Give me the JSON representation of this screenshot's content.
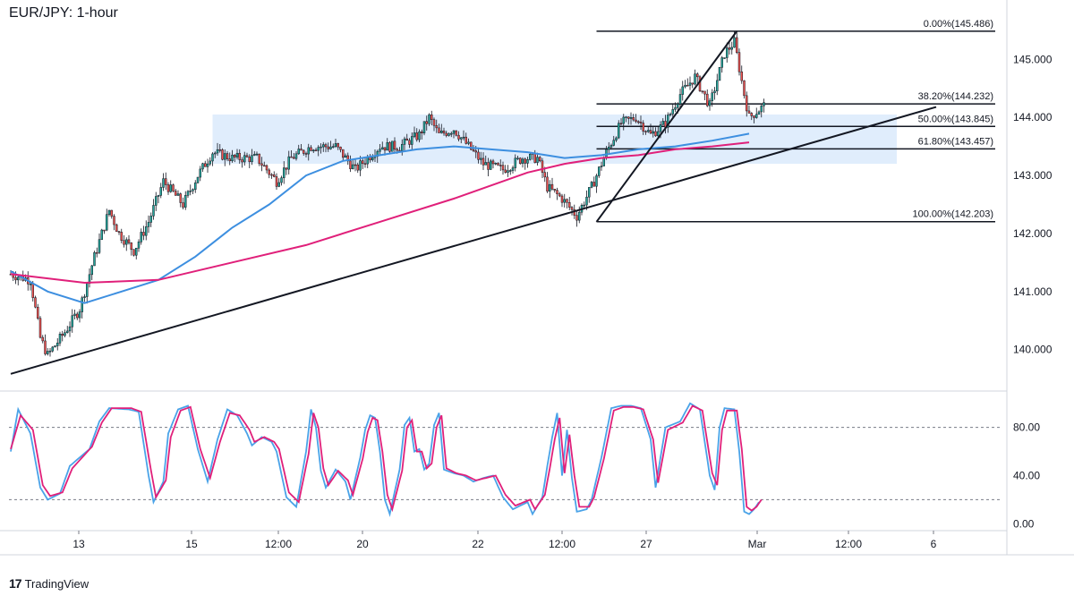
{
  "header": {
    "title": "EUR/JPY: 1-hour"
  },
  "branding": {
    "logo_icon": "tradingview-logo-icon",
    "name": "TradingView"
  },
  "colors": {
    "up": "#26a69a",
    "down": "#ef5350",
    "candle": "#131722",
    "ma_fast": "#3d8fe0",
    "ma_slow": "#e0207a",
    "zone": "#dbeafb",
    "stoch_k": "#4aa3e8",
    "stoch_d": "#e0207a"
  },
  "chart_data": [
    {
      "type": "candlestick",
      "title": "EUR/JPY: 1-hour",
      "ylim": [
        139.3,
        145.9
      ],
      "y_ticks": [
        "140.000",
        "141.000",
        "142.000",
        "143.000",
        "144.000",
        "145.000"
      ],
      "x_ticks": [
        "13",
        "15",
        "12:00",
        "20",
        "22",
        "12:00",
        "27",
        "Mar",
        "12:00",
        "6"
      ],
      "close_anchors": [
        [
          0,
          141.3
        ],
        [
          8,
          141.2
        ],
        [
          12,
          140.2
        ],
        [
          15,
          139.9
        ],
        [
          22,
          140.3
        ],
        [
          28,
          140.7
        ],
        [
          34,
          141.6
        ],
        [
          40,
          142.4
        ],
        [
          44,
          142.0
        ],
        [
          50,
          141.7
        ],
        [
          56,
          142.2
        ],
        [
          62,
          142.9
        ],
        [
          66,
          142.7
        ],
        [
          70,
          142.5
        ],
        [
          76,
          143.0
        ],
        [
          82,
          143.4
        ],
        [
          90,
          143.3
        ],
        [
          100,
          143.3
        ],
        [
          108,
          142.9
        ],
        [
          114,
          143.3
        ],
        [
          122,
          143.5
        ],
        [
          132,
          143.5
        ],
        [
          140,
          143.1
        ],
        [
          150,
          143.5
        ],
        [
          158,
          143.5
        ],
        [
          166,
          143.7
        ],
        [
          170,
          144.0
        ],
        [
          174,
          143.7
        ],
        [
          180,
          143.8
        ],
        [
          186,
          143.5
        ],
        [
          192,
          143.2
        ],
        [
          200,
          143.1
        ],
        [
          208,
          143.3
        ],
        [
          214,
          143.3
        ],
        [
          218,
          142.8
        ],
        [
          224,
          142.6
        ],
        [
          230,
          142.3
        ],
        [
          236,
          142.8
        ],
        [
          242,
          143.4
        ],
        [
          248,
          143.9
        ],
        [
          254,
          144.0
        ],
        [
          260,
          143.7
        ],
        [
          266,
          143.9
        ],
        [
          272,
          144.4
        ],
        [
          278,
          144.7
        ],
        [
          284,
          144.2
        ],
        [
          290,
          145.1
        ],
        [
          294,
          145.3
        ],
        [
          298,
          144.4
        ],
        [
          300,
          144.0
        ],
        [
          306,
          144.2
        ]
      ],
      "moving_averages": [
        {
          "color_key": "ma_fast",
          "points": [
            [
              0,
              141.35
            ],
            [
              15,
              141.0
            ],
            [
              30,
              140.8
            ],
            [
              45,
              141.0
            ],
            [
              60,
              141.2
            ],
            [
              75,
              141.6
            ],
            [
              90,
              142.1
            ],
            [
              105,
              142.5
            ],
            [
              120,
              143.0
            ],
            [
              135,
              143.25
            ],
            [
              150,
              143.35
            ],
            [
              165,
              143.45
            ],
            [
              180,
              143.5
            ],
            [
              195,
              143.45
            ],
            [
              210,
              143.4
            ],
            [
              225,
              143.3
            ],
            [
              240,
              143.35
            ],
            [
              255,
              143.45
            ],
            [
              270,
              143.5
            ],
            [
              285,
              143.6
            ],
            [
              300,
              143.72
            ]
          ]
        },
        {
          "color_key": "ma_slow",
          "points": [
            [
              0,
              141.3
            ],
            [
              30,
              141.15
            ],
            [
              60,
              141.2
            ],
            [
              90,
              141.5
            ],
            [
              120,
              141.8
            ],
            [
              150,
              142.2
            ],
            [
              180,
              142.6
            ],
            [
              210,
              143.05
            ],
            [
              225,
              143.2
            ],
            [
              240,
              143.3
            ],
            [
              255,
              143.35
            ],
            [
              270,
              143.45
            ],
            [
              285,
              143.5
            ],
            [
              300,
              143.57
            ]
          ]
        }
      ],
      "supply_zone": {
        "x_from": 82,
        "x_to": 360,
        "y_from": 143.2,
        "y_to": 144.05
      },
      "trendlines": [
        {
          "from": [
            0,
            139.58
          ],
          "to": [
            376,
            144.18
          ]
        },
        {
          "from": [
            238,
            142.2
          ],
          "to": [
            295,
            145.486
          ]
        }
      ],
      "fibonacci": [
        {
          "label": "0.00%(145.486)",
          "price": 145.486
        },
        {
          "label": "38.20%(144.232)",
          "price": 144.232
        },
        {
          "label": "50.00%(143.845)",
          "price": 143.845
        },
        {
          "label": "61.80%(143.457)",
          "price": 143.457
        },
        {
          "label": "100.00%(142.203)",
          "price": 142.203
        }
      ],
      "fib_x_from": 238,
      "fib_x_to": 400
    },
    {
      "type": "line",
      "title": "",
      "ylim": [
        -5,
        108
      ],
      "y_ticks": [
        "0.00",
        "40.00",
        "80.00"
      ],
      "levels": [
        80,
        20
      ],
      "k_anchors": [
        [
          0,
          60
        ],
        [
          3,
          95
        ],
        [
          8,
          75
        ],
        [
          12,
          30
        ],
        [
          15,
          20
        ],
        [
          20,
          25
        ],
        [
          24,
          48
        ],
        [
          28,
          55
        ],
        [
          32,
          62
        ],
        [
          36,
          85
        ],
        [
          40,
          96
        ],
        [
          48,
          95
        ],
        [
          52,
          93
        ],
        [
          56,
          40
        ],
        [
          58,
          18
        ],
        [
          62,
          35
        ],
        [
          64,
          75
        ],
        [
          68,
          95
        ],
        [
          72,
          98
        ],
        [
          76,
          62
        ],
        [
          80,
          35
        ],
        [
          84,
          70
        ],
        [
          88,
          95
        ],
        [
          92,
          90
        ],
        [
          96,
          75
        ],
        [
          98,
          65
        ],
        [
          102,
          72
        ],
        [
          106,
          68
        ],
        [
          108,
          60
        ],
        [
          112,
          22
        ],
        [
          116,
          14
        ],
        [
          120,
          60
        ],
        [
          122,
          95
        ],
        [
          124,
          80
        ],
        [
          126,
          44
        ],
        [
          128,
          30
        ],
        [
          132,
          45
        ],
        [
          136,
          35
        ],
        [
          138,
          20
        ],
        [
          142,
          55
        ],
        [
          144,
          78
        ],
        [
          146,
          90
        ],
        [
          148,
          88
        ],
        [
          150,
          60
        ],
        [
          152,
          20
        ],
        [
          154,
          8
        ],
        [
          158,
          45
        ],
        [
          160,
          82
        ],
        [
          162,
          88
        ],
        [
          164,
          60
        ],
        [
          166,
          62
        ],
        [
          168,
          45
        ],
        [
          170,
          50
        ],
        [
          172,
          82
        ],
        [
          174,
          92
        ],
        [
          176,
          45
        ],
        [
          180,
          42
        ],
        [
          184,
          40
        ],
        [
          188,
          35
        ],
        [
          192,
          38
        ],
        [
          196,
          40
        ],
        [
          200,
          22
        ],
        [
          204,
          12
        ],
        [
          210,
          18
        ],
        [
          212,
          8
        ],
        [
          216,
          22
        ],
        [
          218,
          48
        ],
        [
          220,
          72
        ],
        [
          222,
          92
        ],
        [
          224,
          40
        ],
        [
          226,
          78
        ],
        [
          228,
          38
        ],
        [
          230,
          10
        ],
        [
          234,
          12
        ],
        [
          236,
          20
        ],
        [
          240,
          55
        ],
        [
          244,
          96
        ],
        [
          248,
          98
        ],
        [
          252,
          98
        ],
        [
          256,
          96
        ],
        [
          260,
          70
        ],
        [
          262,
          30
        ],
        [
          266,
          80
        ],
        [
          272,
          85
        ],
        [
          276,
          100
        ],
        [
          280,
          95
        ],
        [
          284,
          40
        ],
        [
          286,
          28
        ],
        [
          288,
          80
        ],
        [
          290,
          96
        ],
        [
          294,
          95
        ],
        [
          296,
          60
        ],
        [
          298,
          10
        ],
        [
          300,
          8
        ],
        [
          302,
          12
        ],
        [
          304,
          18
        ]
      ],
      "d_anchors": [
        [
          0,
          62
        ],
        [
          4,
          90
        ],
        [
          9,
          78
        ],
        [
          13,
          32
        ],
        [
          16,
          23
        ],
        [
          21,
          26
        ],
        [
          25,
          46
        ],
        [
          29,
          55
        ],
        [
          33,
          64
        ],
        [
          37,
          84
        ],
        [
          41,
          96
        ],
        [
          49,
          96
        ],
        [
          53,
          93
        ],
        [
          57,
          44
        ],
        [
          59,
          22
        ],
        [
          63,
          36
        ],
        [
          65,
          72
        ],
        [
          69,
          94
        ],
        [
          73,
          97
        ],
        [
          77,
          62
        ],
        [
          81,
          38
        ],
        [
          85,
          68
        ],
        [
          89,
          92
        ],
        [
          93,
          90
        ],
        [
          97,
          78
        ],
        [
          99,
          68
        ],
        [
          103,
          72
        ],
        [
          107,
          68
        ],
        [
          109,
          62
        ],
        [
          113,
          26
        ],
        [
          117,
          18
        ],
        [
          121,
          58
        ],
        [
          123,
          92
        ],
        [
          125,
          80
        ],
        [
          127,
          46
        ],
        [
          129,
          32
        ],
        [
          133,
          44
        ],
        [
          137,
          36
        ],
        [
          139,
          24
        ],
        [
          143,
          54
        ],
        [
          145,
          76
        ],
        [
          147,
          88
        ],
        [
          149,
          86
        ],
        [
          151,
          60
        ],
        [
          153,
          24
        ],
        [
          155,
          12
        ],
        [
          159,
          44
        ],
        [
          161,
          80
        ],
        [
          163,
          86
        ],
        [
          165,
          60
        ],
        [
          167,
          60
        ],
        [
          169,
          46
        ],
        [
          171,
          50
        ],
        [
          173,
          80
        ],
        [
          175,
          90
        ],
        [
          177,
          46
        ],
        [
          181,
          42
        ],
        [
          185,
          40
        ],
        [
          189,
          36
        ],
        [
          193,
          38
        ],
        [
          197,
          40
        ],
        [
          201,
          24
        ],
        [
          205,
          15
        ],
        [
          211,
          20
        ],
        [
          213,
          12
        ],
        [
          217,
          24
        ],
        [
          219,
          46
        ],
        [
          221,
          70
        ],
        [
          223,
          88
        ],
        [
          225,
          42
        ],
        [
          227,
          74
        ],
        [
          229,
          40
        ],
        [
          231,
          14
        ],
        [
          235,
          14
        ],
        [
          237,
          22
        ],
        [
          241,
          54
        ],
        [
          245,
          94
        ],
        [
          249,
          97
        ],
        [
          253,
          97
        ],
        [
          257,
          95
        ],
        [
          261,
          70
        ],
        [
          263,
          34
        ],
        [
          267,
          78
        ],
        [
          273,
          84
        ],
        [
          277,
          98
        ],
        [
          281,
          94
        ],
        [
          285,
          42
        ],
        [
          287,
          32
        ],
        [
          289,
          78
        ],
        [
          291,
          94
        ],
        [
          295,
          94
        ],
        [
          297,
          62
        ],
        [
          299,
          14
        ],
        [
          301,
          11
        ],
        [
          303,
          14
        ],
        [
          305,
          20
        ]
      ]
    }
  ]
}
